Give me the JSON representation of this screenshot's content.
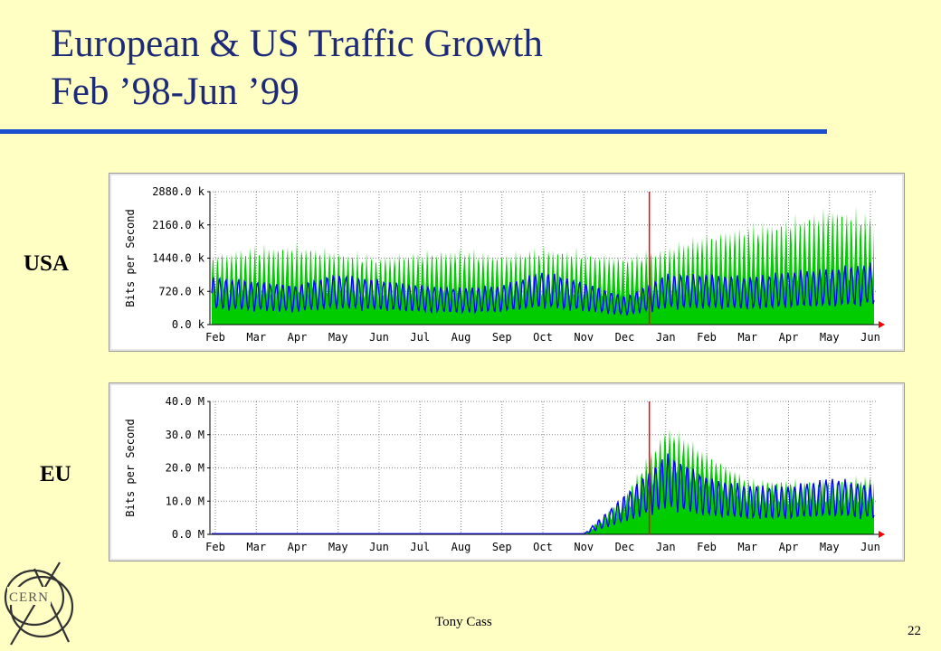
{
  "slide": {
    "title_line1": "European & US Traffic Growth",
    "title_line2": "Feb ’98-Jun ’99",
    "author": "Tony Cass",
    "page_number": "22",
    "logo_text": "CERN"
  },
  "chart_data": [
    {
      "type": "area",
      "region_label": "USA",
      "ylabel": "Bits per Second",
      "yticks": [
        "0.0 k",
        "720.0 k",
        "1440.0 k",
        "2160.0 k",
        "2880.0 k"
      ],
      "ylim": [
        0,
        2880
      ],
      "unit": "k",
      "months": [
        "Feb",
        "Mar",
        "Apr",
        "May",
        "Jun",
        "Jul",
        "Aug",
        "Sep",
        "Oct",
        "Nov",
        "Dec",
        "Jan",
        "Feb",
        "Mar",
        "Apr",
        "May",
        "Jun"
      ],
      "marker_after_month_index": 10,
      "series": [
        {
          "color": "#00cc00",
          "values": [
            1500,
            1650,
            1700,
            1580,
            1450,
            1550,
            1600,
            1500,
            1650,
            1550,
            1450,
            1650,
            1950,
            2100,
            2250,
            2500,
            2300
          ]
        },
        {
          "color": "#0000ff",
          "values": [
            850,
            780,
            700,
            900,
            800,
            700,
            650,
            700,
            950,
            750,
            500,
            900,
            900,
            850,
            950,
            1000,
            1100
          ]
        }
      ],
      "grid": true
    },
    {
      "type": "area",
      "region_label": "EU",
      "ylabel": "Bits per Second",
      "yticks": [
        "0.0 M",
        "10.0 M",
        "20.0 M",
        "30.0 M",
        "40.0 M"
      ],
      "ylim": [
        0,
        40
      ],
      "unit": "M",
      "months": [
        "Feb",
        "Mar",
        "Apr",
        "May",
        "Jun",
        "Jul",
        "Aug",
        "Sep",
        "Oct",
        "Nov",
        "Dec",
        "Jan",
        "Feb",
        "Mar",
        "Apr",
        "May",
        "Jun"
      ],
      "marker_after_month_index": 10,
      "series": [
        {
          "color": "#00cc00",
          "values": [
            0.2,
            0.2,
            0.2,
            0.2,
            0.2,
            0.2,
            0.2,
            0.2,
            0.2,
            0.2,
            12,
            32,
            24,
            16,
            16,
            16,
            17
          ]
        },
        {
          "color": "#0000ff",
          "values": [
            0.2,
            0.2,
            0.2,
            0.2,
            0.2,
            0.2,
            0.2,
            0.2,
            0.2,
            0.2,
            10,
            20,
            14,
            12,
            12,
            14,
            12
          ]
        }
      ],
      "grid": true
    }
  ]
}
